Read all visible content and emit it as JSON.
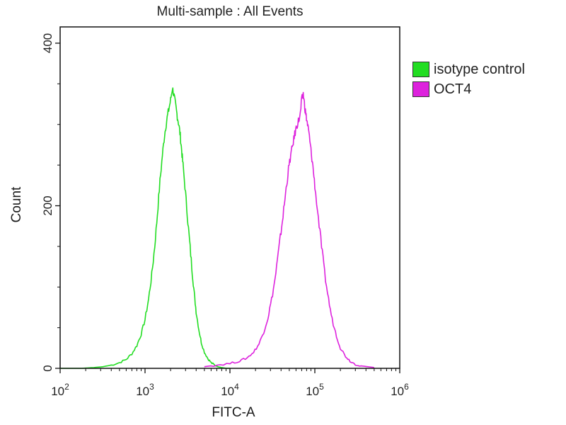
{
  "chart_data": {
    "type": "line",
    "title": "Multi-sample : All Events",
    "xlabel": "FITC-A",
    "ylabel": "Count",
    "x_scale": "log",
    "xlim": [
      100,
      1000000
    ],
    "ylim": [
      0,
      420
    ],
    "x_ticks": [
      {
        "value": 100,
        "base": "10",
        "exp": "2"
      },
      {
        "value": 1000,
        "base": "10",
        "exp": "3"
      },
      {
        "value": 10000,
        "base": "10",
        "exp": "4"
      },
      {
        "value": 100000,
        "base": "10",
        "exp": "5"
      },
      {
        "value": 1000000,
        "base": "10",
        "exp": "6"
      }
    ],
    "y_ticks": [
      0,
      200,
      400
    ],
    "grid": false,
    "legend_position": "right",
    "series": [
      {
        "name": "isotype control",
        "color": "#22dd22",
        "x": [
          100,
          180,
          250,
          320,
          400,
          500,
          600,
          700,
          800,
          900,
          1000,
          1100,
          1200,
          1300,
          1400,
          1500,
          1600,
          1700,
          1800,
          1900,
          2000,
          2100,
          2200,
          2300,
          2400,
          2500,
          2600,
          2700,
          2800,
          3000,
          3200,
          3400,
          3600,
          3800,
          4000,
          4300,
          4600,
          5000,
          5500,
          6000,
          6600,
          7200,
          8000,
          9000,
          10000
        ],
        "y": [
          0,
          0,
          1,
          2,
          4,
          7,
          11,
          18,
          28,
          42,
          60,
          85,
          115,
          150,
          190,
          230,
          262,
          288,
          305,
          318,
          330,
          345,
          335,
          322,
          310,
          300,
          286,
          268,
          250,
          215,
          180,
          148,
          118,
          92,
          70,
          48,
          32,
          20,
          12,
          7,
          4,
          2,
          1,
          0,
          0
        ]
      },
      {
        "name": "OCT4",
        "color": "#dd22dd",
        "x": [
          5000,
          7000,
          10000,
          13000,
          16000,
          19000,
          22000,
          25000,
          28000,
          31000,
          34000,
          37000,
          40000,
          43000,
          46000,
          49000,
          52000,
          55000,
          58000,
          61000,
          64000,
          67000,
          70000,
          73000,
          76000,
          79000,
          82000,
          85000,
          90000,
          95000,
          100000,
          110000,
          120000,
          130000,
          145000,
          160000,
          180000,
          200000,
          230000,
          260000,
          300000,
          350000,
          420000,
          500000
        ],
        "y": [
          2,
          4,
          6,
          9,
          13,
          20,
          30,
          45,
          62,
          85,
          110,
          140,
          168,
          195,
          222,
          245,
          262,
          275,
          288,
          298,
          304,
          310,
          330,
          338,
          322,
          310,
          300,
          290,
          268,
          248,
          225,
          185,
          150,
          118,
          85,
          60,
          40,
          25,
          15,
          9,
          5,
          3,
          2,
          1
        ]
      }
    ]
  }
}
